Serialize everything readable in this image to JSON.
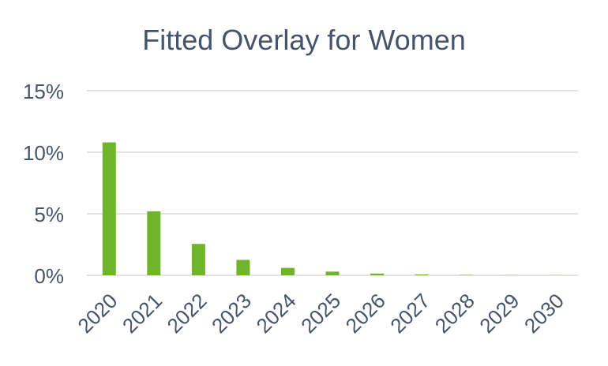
{
  "chart_data": {
    "type": "bar",
    "title": "Fitted Overlay for Women",
    "xlabel": "",
    "ylabel": "",
    "categories": [
      "2020",
      "2021",
      "2022",
      "2023",
      "2024",
      "2025",
      "2026",
      "2027",
      "2028",
      "2029",
      "2030"
    ],
    "values": [
      10.8,
      5.2,
      2.55,
      1.25,
      0.6,
      0.3,
      0.14,
      0.07,
      0.03,
      0.015,
      0.008
    ],
    "value_unit": "%",
    "ylim": [
      0,
      15
    ],
    "yticks": [
      0,
      5,
      10,
      15
    ],
    "ytick_labels": [
      "0%",
      "5%",
      "10%",
      "15%"
    ],
    "grid": true,
    "legend": "none",
    "colors": {
      "bar": "#6fb52c",
      "text": "#44546a",
      "grid": "#d9d9d9"
    }
  }
}
